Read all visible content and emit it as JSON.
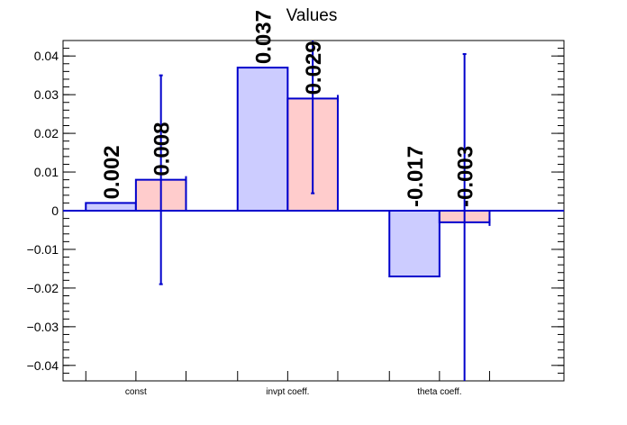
{
  "chart_data": {
    "type": "bar",
    "title": "Values",
    "categories": [
      "const",
      "invpt coeff.",
      "theta coeff."
    ],
    "series": [
      {
        "values": [
          0.002,
          0.037,
          -0.017
        ],
        "labels": [
          "0.002",
          "0.037",
          "-0.017"
        ],
        "fill": "#ccccff",
        "stroke": "#0000cc"
      },
      {
        "values": [
          0.008,
          0.029,
          -0.003
        ],
        "labels": [
          "0.008",
          "0.029",
          "-0.003"
        ],
        "errors": [
          0.027,
          0.0245,
          0.0435
        ],
        "fill": "#ffcccc",
        "stroke": "#0000cc"
      }
    ],
    "ylim": [
      -0.044,
      0.044
    ],
    "yticks": [
      -0.04,
      -0.03,
      -0.02,
      -0.01,
      0,
      0.01,
      0.02,
      0.03,
      0.04
    ],
    "ytick_labels": [
      "−0.04",
      "−0.03",
      "−0.02",
      "−0.01",
      "0",
      "0.01",
      "0.02",
      "0.03",
      "0.04"
    ],
    "grid": false,
    "legend": "none"
  }
}
